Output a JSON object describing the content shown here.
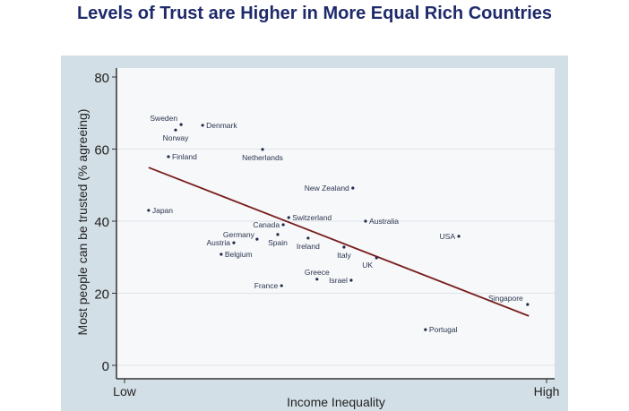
{
  "title": "Levels of Trust are Higher in More Equal Rich Countries",
  "chart_data": {
    "type": "scatter",
    "title": "Levels of Trust are Higher in More Equal Rich Countries",
    "xlabel": "Income Inequality",
    "ylabel": "Most people can be trusted (% agreeing)",
    "xlim": [
      -2,
      102
    ],
    "ylim": [
      0,
      80
    ],
    "x_ticks": [
      {
        "value": 0,
        "label": "Low"
      },
      {
        "value": 100,
        "label": "High"
      }
    ],
    "y_ticks": [
      0,
      20,
      40,
      60,
      80
    ],
    "grid": true,
    "points": [
      {
        "label": "Sweden",
        "x": 13.4,
        "y": 66.8
      },
      {
        "label": "Norway",
        "x": 12.1,
        "y": 65.3
      },
      {
        "label": "Denmark",
        "x": 18.5,
        "y": 66.6
      },
      {
        "label": "Finland",
        "x": 10.4,
        "y": 57.9
      },
      {
        "label": "Netherlands",
        "x": 32.7,
        "y": 59.9
      },
      {
        "label": "Japan",
        "x": 5.7,
        "y": 43.0
      },
      {
        "label": "New Zealand",
        "x": 54.1,
        "y": 49.2
      },
      {
        "label": "Switzerland",
        "x": 38.9,
        "y": 41.0
      },
      {
        "label": "Canada",
        "x": 37.6,
        "y": 39.0
      },
      {
        "label": "Australia",
        "x": 57.1,
        "y": 40.0
      },
      {
        "label": "USA",
        "x": 79.2,
        "y": 35.8
      },
      {
        "label": "Germany",
        "x": 31.4,
        "y": 35.0
      },
      {
        "label": "Spain",
        "x": 36.3,
        "y": 36.3
      },
      {
        "label": "Austria",
        "x": 25.9,
        "y": 34.0
      },
      {
        "label": "Ireland",
        "x": 43.5,
        "y": 35.3
      },
      {
        "label": "Belgium",
        "x": 22.9,
        "y": 30.8
      },
      {
        "label": "Italy",
        "x": 52.0,
        "y": 32.8
      },
      {
        "label": "UK",
        "x": 59.7,
        "y": 29.8
      },
      {
        "label": "Greece",
        "x": 45.6,
        "y": 23.9
      },
      {
        "label": "Israel",
        "x": 53.7,
        "y": 23.6
      },
      {
        "label": "France",
        "x": 37.2,
        "y": 22.1
      },
      {
        "label": "Singapore",
        "x": 95.5,
        "y": 16.9
      },
      {
        "label": "Portugal",
        "x": 71.3,
        "y": 9.9
      }
    ],
    "fit_line": {
      "x": [
        5.7,
        95.8
      ],
      "y": [
        54.9,
        13.7
      ]
    },
    "colors": {
      "title": "#1f2a6b",
      "points": "#1f2a4a",
      "fit_line": "#7a1f1f",
      "panel": "#d3dfe6",
      "plot": "#f7f8f9"
    }
  }
}
